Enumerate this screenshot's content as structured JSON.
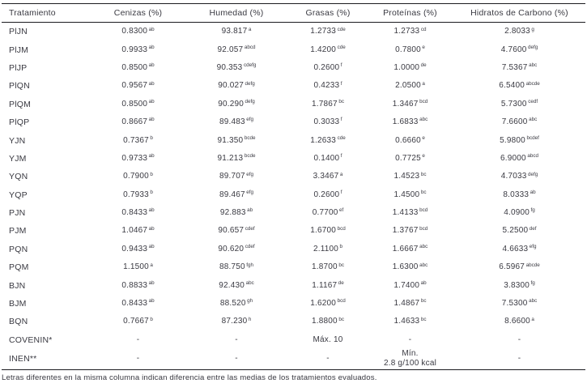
{
  "table": {
    "columns": [
      "Tratamiento",
      "Cenizas (%)",
      "Humedad (%)",
      "Grasas (%)",
      "Proteínas (%)",
      "Hidratos de Carbono (%)"
    ],
    "rows": [
      {
        "label": "PlJN",
        "cells": [
          {
            "v": "0.8300",
            "s": "ab"
          },
          {
            "v": "93.817",
            "s": "a"
          },
          {
            "v": "1.2733",
            "s": "cde"
          },
          {
            "v": "1.2733",
            "s": "cd"
          },
          {
            "v": "2.8033",
            "s": "g"
          }
        ]
      },
      {
        "label": "PlJM",
        "cells": [
          {
            "v": "0.9933",
            "s": "ab"
          },
          {
            "v": "92.057",
            "s": "abcd"
          },
          {
            "v": "1.4200",
            "s": "cde"
          },
          {
            "v": "0.7800",
            "s": "e"
          },
          {
            "v": "4.7600",
            "s": "defg"
          }
        ]
      },
      {
        "label": "PlJP",
        "cells": [
          {
            "v": "0.8500",
            "s": "ab"
          },
          {
            "v": "90.353",
            "s": "cdefg"
          },
          {
            "v": "0.2600",
            "s": "f"
          },
          {
            "v": "1.0000",
            "s": "de"
          },
          {
            "v": "7.5367",
            "s": "abc"
          }
        ]
      },
      {
        "label": "PlQN",
        "cells": [
          {
            "v": "0.9567",
            "s": "ab"
          },
          {
            "v": "90.027",
            "s": "defg"
          },
          {
            "v": "0.4233",
            "s": "f"
          },
          {
            "v": "2.0500",
            "s": "a"
          },
          {
            "v": "6.5400",
            "s": "abcde"
          }
        ]
      },
      {
        "label": "PlQM",
        "cells": [
          {
            "v": "0.8500",
            "s": "ab"
          },
          {
            "v": "90.290",
            "s": "defg"
          },
          {
            "v": "1.7867",
            "s": "bc"
          },
          {
            "v": "1.3467",
            "s": "bcd"
          },
          {
            "v": "5.7300",
            "s": "cedf"
          }
        ]
      },
      {
        "label": "PlQP",
        "cells": [
          {
            "v": "0.8667",
            "s": "ab"
          },
          {
            "v": "89.483",
            "s": "efg"
          },
          {
            "v": "0.3033",
            "s": "f"
          },
          {
            "v": "1.6833",
            "s": "abc"
          },
          {
            "v": "7.6600",
            "s": "abc"
          }
        ]
      },
      {
        "label": "YJN",
        "cells": [
          {
            "v": "0.7367",
            "s": "b"
          },
          {
            "v": "91.350",
            "s": "bcde"
          },
          {
            "v": "1.2633",
            "s": "cde"
          },
          {
            "v": "0.6660",
            "s": "e"
          },
          {
            "v": "5.9800",
            "s": "bcdef"
          }
        ]
      },
      {
        "label": "YJM",
        "cells": [
          {
            "v": "0.9733",
            "s": "ab"
          },
          {
            "v": "91.213",
            "s": "bcde"
          },
          {
            "v": "0.1400",
            "s": "f"
          },
          {
            "v": "0.7725",
            "s": "e"
          },
          {
            "v": "6.9000",
            "s": "abcd"
          }
        ]
      },
      {
        "label": "YQN",
        "cells": [
          {
            "v": "0.7900",
            "s": "b"
          },
          {
            "v": "89.707",
            "s": "efg"
          },
          {
            "v": "3.3467",
            "s": "a"
          },
          {
            "v": "1.4523",
            "s": "bc"
          },
          {
            "v": "4.7033",
            "s": "defg"
          }
        ]
      },
      {
        "label": "YQP",
        "cells": [
          {
            "v": "0.7933",
            "s": "b"
          },
          {
            "v": "89.467",
            "s": "efg"
          },
          {
            "v": "0.2600",
            "s": "f"
          },
          {
            "v": "1.4500",
            "s": "bc"
          },
          {
            "v": "8.0333",
            "s": "ab"
          }
        ]
      },
      {
        "label": "PJN",
        "cells": [
          {
            "v": "0.8433",
            "s": "ab"
          },
          {
            "v": "92.883",
            "s": "ab"
          },
          {
            "v": "0.7700",
            "s": "ef"
          },
          {
            "v": "1.4133",
            "s": "bcd"
          },
          {
            "v": "4.0900",
            "s": "fg"
          }
        ]
      },
      {
        "label": "PJM",
        "cells": [
          {
            "v": "1.0467",
            "s": "ab"
          },
          {
            "v": "90.657",
            "s": "cdef"
          },
          {
            "v": "1.6700",
            "s": "bcd"
          },
          {
            "v": "1.3767",
            "s": "bcd"
          },
          {
            "v": "5.2500",
            "s": "def"
          }
        ]
      },
      {
        "label": "PQN",
        "cells": [
          {
            "v": "0.9433",
            "s": "ab"
          },
          {
            "v": "90.620",
            "s": "cdef"
          },
          {
            "v": "2.1100",
            "s": "b"
          },
          {
            "v": "1.6667",
            "s": "abc"
          },
          {
            "v": "4.6633",
            "s": "efg"
          }
        ]
      },
      {
        "label": "PQM",
        "cells": [
          {
            "v": "1.1500",
            "s": "a"
          },
          {
            "v": "88.750",
            "s": "fgh"
          },
          {
            "v": "1.8700",
            "s": "bc"
          },
          {
            "v": "1.6300",
            "s": "abc"
          },
          {
            "v": "6.5967",
            "s": "abcde"
          }
        ]
      },
      {
        "label": "BJN",
        "cells": [
          {
            "v": "0.8833",
            "s": "ab"
          },
          {
            "v": "92.430",
            "s": "abc"
          },
          {
            "v": "1.1167",
            "s": "de"
          },
          {
            "v": "1.7400",
            "s": "ab"
          },
          {
            "v": "3.8300",
            "s": "fg"
          }
        ]
      },
      {
        "label": "BJM",
        "cells": [
          {
            "v": "0.8433",
            "s": "ab"
          },
          {
            "v": "88.520",
            "s": "gh"
          },
          {
            "v": "1.6200",
            "s": "bcd"
          },
          {
            "v": "1.4867",
            "s": "bc"
          },
          {
            "v": "7.5300",
            "s": "abc"
          }
        ]
      },
      {
        "label": "BQN",
        "cells": [
          {
            "v": "0.7667",
            "s": "b"
          },
          {
            "v": "87.230",
            "s": "h"
          },
          {
            "v": "1.8800",
            "s": "bc"
          },
          {
            "v": "1.4633",
            "s": "bc"
          },
          {
            "v": "8.6600",
            "s": "a"
          }
        ]
      },
      {
        "label": "COVENIN*",
        "cells": [
          {
            "v": "-",
            "s": ""
          },
          {
            "v": "-",
            "s": ""
          },
          {
            "v": "Máx. 10",
            "s": ""
          },
          {
            "v": "-",
            "s": ""
          },
          {
            "v": "-",
            "s": ""
          }
        ]
      },
      {
        "label": "INEN**",
        "cells": [
          {
            "v": "-",
            "s": ""
          },
          {
            "v": "-",
            "s": ""
          },
          {
            "v": "-",
            "s": ""
          },
          {
            "v": "Mín.\n2.8 g/100 kcal",
            "s": ""
          },
          {
            "v": "-",
            "s": ""
          }
        ]
      }
    ]
  },
  "footnote": "Letras diferentes en la misma columna indican diferencia entre las medias de los tratamientos evaluados."
}
